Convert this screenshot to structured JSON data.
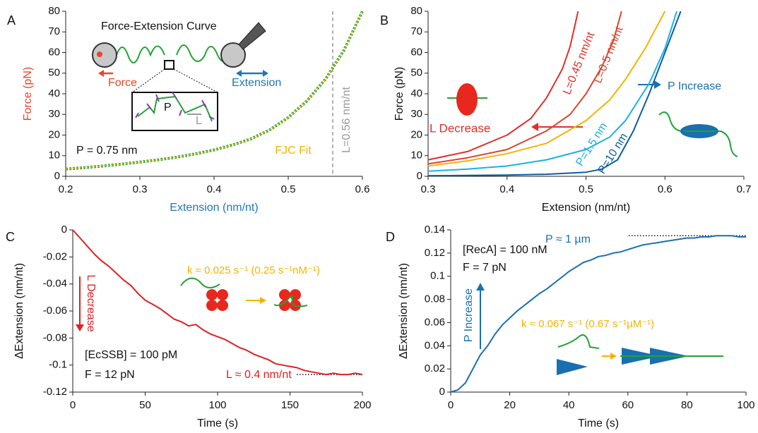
{
  "chart_data": [
    {
      "panel": "A",
      "type": "line",
      "x_label": "Extension (nm/nt)",
      "y_label": "Force (pN)",
      "xlim": [
        0.2,
        0.6
      ],
      "xticks": [
        0.2,
        0.3,
        0.4,
        0.5,
        0.6
      ],
      "ylim": [
        0,
        80
      ],
      "yticks": [
        0,
        10,
        20,
        30,
        40,
        50,
        60,
        70,
        80
      ],
      "x": [
        0.2,
        0.225,
        0.25,
        0.275,
        0.3,
        0.325,
        0.35,
        0.375,
        0.4,
        0.425,
        0.45,
        0.475,
        0.5,
        0.525,
        0.55,
        0.575,
        0.6
      ],
      "series": [
        {
          "color": "#22a335",
          "values": [
            3.5,
            4.2,
            5,
            5.9,
            6.9,
            8,
            9.3,
            10.9,
            12.8,
            15.2,
            18.2,
            22.5,
            28.5,
            36.5,
            47,
            61,
            80
          ]
        },
        {
          "name": "FJC Fit",
          "color": "#f7b500",
          "values": [
            3.5,
            4.2,
            5,
            5.9,
            6.9,
            8,
            9.3,
            10.9,
            12.8,
            15.2,
            18.2,
            22.5,
            28.5,
            36.5,
            47,
            61,
            80
          ]
        }
      ],
      "vline": {
        "value": 0.56,
        "label": "L=0.56 nm/nt"
      },
      "annotations": [
        "Force-Extension Curve",
        "Force",
        "Extension",
        "P",
        "L",
        "P = 0.75 nm"
      ]
    },
    {
      "panel": "B",
      "type": "line",
      "x_label": "Extension (nm/nt)",
      "y_label": "Force (pN)",
      "xlim": [
        0.3,
        0.7
      ],
      "xticks": [
        0.3,
        0.4,
        0.5,
        0.6,
        0.7
      ],
      "ylim": [
        0,
        80
      ],
      "yticks": [
        0,
        10,
        20,
        30,
        40,
        50,
        60,
        70,
        80
      ],
      "series": [
        {
          "name": "L=0.45 nm/nt",
          "color": "#e0302a",
          "x": [
            0.3,
            0.35,
            0.4,
            0.43,
            0.45,
            0.47,
            0.48,
            0.49
          ],
          "values": [
            8,
            12,
            20,
            28,
            38,
            52,
            63,
            80
          ]
        },
        {
          "name": "L=0.5 nm/nt",
          "color": "#d8452c",
          "x": [
            0.3,
            0.35,
            0.4,
            0.45,
            0.48,
            0.5,
            0.52,
            0.535,
            0.545
          ],
          "values": [
            6,
            9,
            13,
            22,
            30,
            40,
            53,
            66,
            80
          ]
        },
        {
          "color": "#f5b300",
          "x": [
            0.3,
            0.35,
            0.4,
            0.45,
            0.5,
            0.53,
            0.55,
            0.575,
            0.6
          ],
          "values": [
            5,
            7.5,
            11,
            16,
            27,
            37,
            47,
            62,
            80
          ]
        },
        {
          "name": "P=1.5 nm",
          "color": "#1cb0e8",
          "x": [
            0.3,
            0.35,
            0.4,
            0.45,
            0.5,
            0.53,
            0.55,
            0.58,
            0.6,
            0.615
          ],
          "values": [
            2.5,
            3.5,
            5,
            8,
            13,
            19,
            27,
            45,
            62,
            80
          ]
        },
        {
          "name": "P=10 nm",
          "color": "#0a5e9e",
          "x": [
            0.3,
            0.35,
            0.4,
            0.45,
            0.5,
            0.52,
            0.54,
            0.56,
            0.58,
            0.6,
            0.62
          ],
          "values": [
            0.3,
            0.4,
            0.6,
            1,
            2,
            3.5,
            8,
            22,
            40,
            60,
            80
          ]
        }
      ],
      "annotations": [
        "L Decrease",
        "P Increase"
      ]
    },
    {
      "panel": "C",
      "type": "line",
      "x_label": "Time (s)",
      "y_label": "ΔExtension (nm/nt)",
      "xlim": [
        0,
        200
      ],
      "xticks": [
        0,
        50,
        100,
        150,
        200
      ],
      "ylim": [
        -0.12,
        0
      ],
      "yticks": [
        0,
        -0.02,
        -0.04,
        -0.06,
        -0.08,
        -0.1,
        -0.12
      ],
      "x": [
        0,
        5,
        10,
        15,
        20,
        25,
        30,
        35,
        40,
        45,
        50,
        55,
        60,
        65,
        70,
        75,
        80,
        85,
        90,
        95,
        100,
        105,
        110,
        115,
        120,
        125,
        130,
        135,
        140,
        145,
        150,
        155,
        160,
        165,
        170,
        175,
        180,
        185,
        190,
        195,
        200
      ],
      "series": [
        {
          "color": "#e02020",
          "values": [
            0,
            -0.006,
            -0.012,
            -0.018,
            -0.023,
            -0.027,
            -0.032,
            -0.037,
            -0.041,
            -0.047,
            -0.052,
            -0.055,
            -0.058,
            -0.062,
            -0.066,
            -0.068,
            -0.071,
            -0.07,
            -0.074,
            -0.077,
            -0.079,
            -0.081,
            -0.084,
            -0.087,
            -0.089,
            -0.092,
            -0.094,
            -0.096,
            -0.099,
            -0.1,
            -0.101,
            -0.102,
            -0.104,
            -0.105,
            -0.106,
            -0.107,
            -0.106,
            -0.107,
            -0.107,
            -0.106,
            -0.107
          ]
        }
      ],
      "hline": -0.107,
      "annotations": [
        "k ≈ 0.025 s⁻¹ (0.25 s⁻¹nM⁻¹)",
        "L Decrease",
        "[EcSSB] = 100 pM",
        "F = 12 pN",
        "L ≈ 0.4 nm/nt"
      ]
    },
    {
      "panel": "D",
      "type": "line",
      "x_label": "Time (s)",
      "y_label": "ΔExtension (nm/nt)",
      "xlim": [
        0,
        100
      ],
      "xticks": [
        0,
        20,
        40,
        60,
        80,
        100
      ],
      "ylim": [
        0,
        0.14
      ],
      "yticks": [
        0,
        0.02,
        0.04,
        0.06,
        0.08,
        0.1,
        0.12,
        0.14
      ],
      "x": [
        0,
        2.5,
        5,
        7.5,
        10,
        12.5,
        15,
        17.5,
        20,
        22.5,
        25,
        27.5,
        30,
        32.5,
        35,
        37.5,
        40,
        42.5,
        45,
        47.5,
        50,
        52.5,
        55,
        57.5,
        60,
        62.5,
        65,
        67.5,
        70,
        72.5,
        75,
        77.5,
        80,
        82.5,
        85,
        87.5,
        90,
        92.5,
        95,
        97.5,
        100
      ],
      "series": [
        {
          "color": "#1a6fb0",
          "values": [
            0,
            0.002,
            0.008,
            0.02,
            0.032,
            0.04,
            0.05,
            0.058,
            0.064,
            0.07,
            0.075,
            0.08,
            0.085,
            0.089,
            0.094,
            0.099,
            0.104,
            0.108,
            0.112,
            0.114,
            0.117,
            0.118,
            0.12,
            0.121,
            0.123,
            0.125,
            0.127,
            0.128,
            0.129,
            0.13,
            0.131,
            0.132,
            0.133,
            0.133,
            0.134,
            0.134,
            0.135,
            0.135,
            0.135,
            0.134,
            0.134
          ]
        }
      ],
      "hline": 0.135,
      "annotations": [
        "[RecA] = 100 nM",
        "F = 7 pN",
        "P ≈ 1 µm",
        "P Increase",
        "k ≈ 0.067 s⁻¹ (0.67 s⁻¹µM⁻¹)"
      ]
    }
  ]
}
